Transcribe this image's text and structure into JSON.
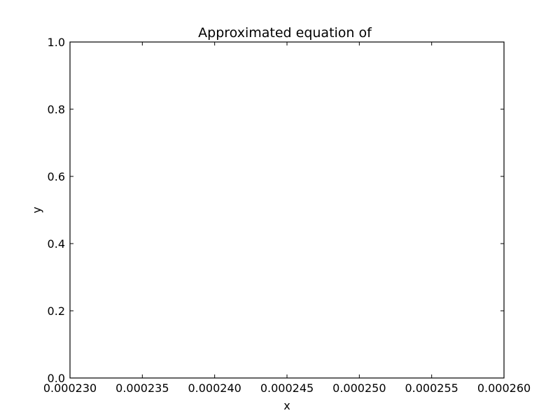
{
  "chart_data": {
    "type": "line",
    "title": "Approximated equation of",
    "xlabel": "x",
    "ylabel": "y",
    "xlim": [
      0.00023,
      0.00026
    ],
    "ylim": [
      0.0,
      1.0
    ],
    "x_ticks": [
      0.00023,
      0.000235,
      0.00024,
      0.000245,
      0.00025,
      0.000255,
      0.00026
    ],
    "x_tick_labels": [
      "0.000230",
      "0.000235",
      "0.000240",
      "0.000245",
      "0.000250",
      "0.000255",
      "0.000260"
    ],
    "y_ticks": [
      0.0,
      0.2,
      0.4,
      0.6,
      0.8,
      1.0
    ],
    "y_tick_labels": [
      "0.0",
      "0.2",
      "0.4",
      "0.6",
      "0.8",
      "1.0"
    ],
    "grid": false,
    "series": []
  }
}
